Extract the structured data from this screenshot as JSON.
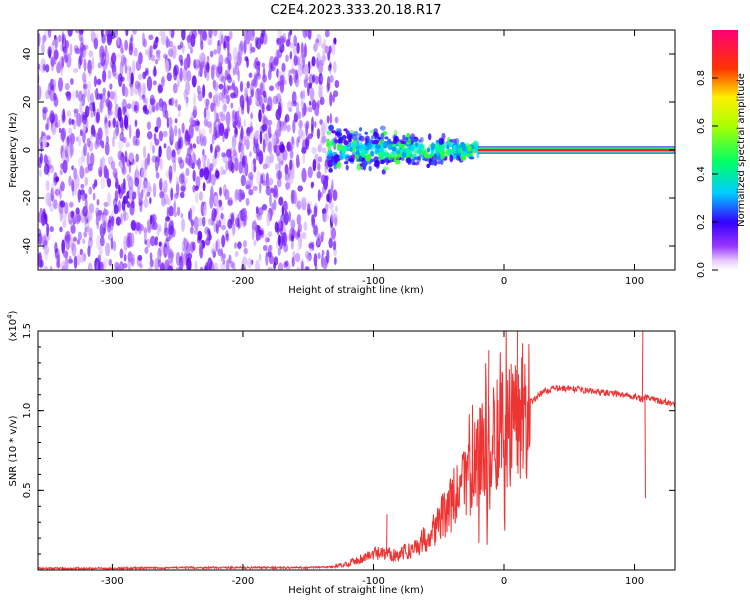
{
  "title": "C2E4.2023.333.20.18.R17",
  "chart_data": [
    {
      "type": "heatmap",
      "xlabel": "Height of straight line (km)",
      "ylabel": "Frequency (Hz)",
      "xlim": [
        -357,
        131
      ],
      "ylim": [
        -50,
        50
      ],
      "xticks": [
        "-300",
        "-200",
        "-100",
        "0",
        "100"
      ],
      "xtick_values": [
        -300,
        -200,
        -100,
        0,
        100
      ],
      "yticks": [
        "-40",
        "-20",
        "0",
        "20",
        "40"
      ],
      "ytick_values": [
        -40,
        -20,
        0,
        20,
        40
      ],
      "colorbar": {
        "label": "Normalized spectral amplitude",
        "range": [
          0,
          1
        ],
        "ticks": [
          "0.0",
          "0.2",
          "0.4",
          "0.6",
          "0.8"
        ],
        "tick_values": [
          0.0,
          0.2,
          0.4,
          0.6,
          0.8
        ],
        "colormap": "rainbow (white-purple-blue-cyan-green-yellow-red-magenta)"
      },
      "regions": [
        {
          "x_range": [
            -357,
            -128
          ],
          "y_range": [
            -50,
            50
          ],
          "amplitude": 0.15,
          "description": "broadband noise"
        },
        {
          "x_range": [
            -135,
            -20
          ],
          "y_range": [
            -12,
            14
          ],
          "amplitude": 0.45
        },
        {
          "x_range": [
            -20,
            131
          ],
          "y_range": [
            -1,
            1
          ],
          "amplitude": 0.9
        }
      ],
      "grid": false
    },
    {
      "type": "line",
      "xlabel": "Height of straight line (km)",
      "ylabel": "SNR (10 * v/v)",
      "yscale_label": "(x10^4)",
      "xlim": [
        -357,
        131
      ],
      "ylim": [
        0,
        1.5
      ],
      "xticks": [
        "-300",
        "-200",
        "-100",
        "0",
        "100"
      ],
      "xtick_values": [
        -300,
        -200,
        -100,
        0,
        100
      ],
      "yticks": [
        "0.5",
        "1.0",
        "1.5"
      ],
      "ytick_values": [
        0.5,
        1.0,
        1.5
      ],
      "series": [
        {
          "color": "#ee3333",
          "x": [
            -357,
            -300,
            -250,
            -200,
            -150,
            -130,
            -120,
            -110,
            -100,
            -90,
            -80,
            -70,
            -60,
            -50,
            -40,
            -30,
            -20,
            -10,
            0,
            10,
            20,
            30,
            40,
            50,
            60,
            70,
            80,
            90,
            100,
            105,
            110,
            120,
            131
          ],
          "y": [
            0.01,
            0.01,
            0.015,
            0.015,
            0.015,
            0.02,
            0.04,
            0.07,
            0.1,
            0.1,
            0.1,
            0.13,
            0.2,
            0.3,
            0.42,
            0.55,
            0.7,
            0.82,
            0.9,
            0.95,
            1.05,
            1.12,
            1.14,
            1.14,
            1.13,
            1.12,
            1.11,
            1.1,
            1.09,
            1.07,
            1.08,
            1.06,
            1.04
          ]
        }
      ],
      "spikes": [
        {
          "x": -90,
          "y": 0.35
        },
        {
          "x": -12,
          "y": 1.38
        },
        {
          "x": 10,
          "y": 1.5
        },
        {
          "x": 106,
          "y": 1.5
        },
        {
          "x": 108,
          "y": 0.45
        }
      ],
      "grid": false
    }
  ]
}
